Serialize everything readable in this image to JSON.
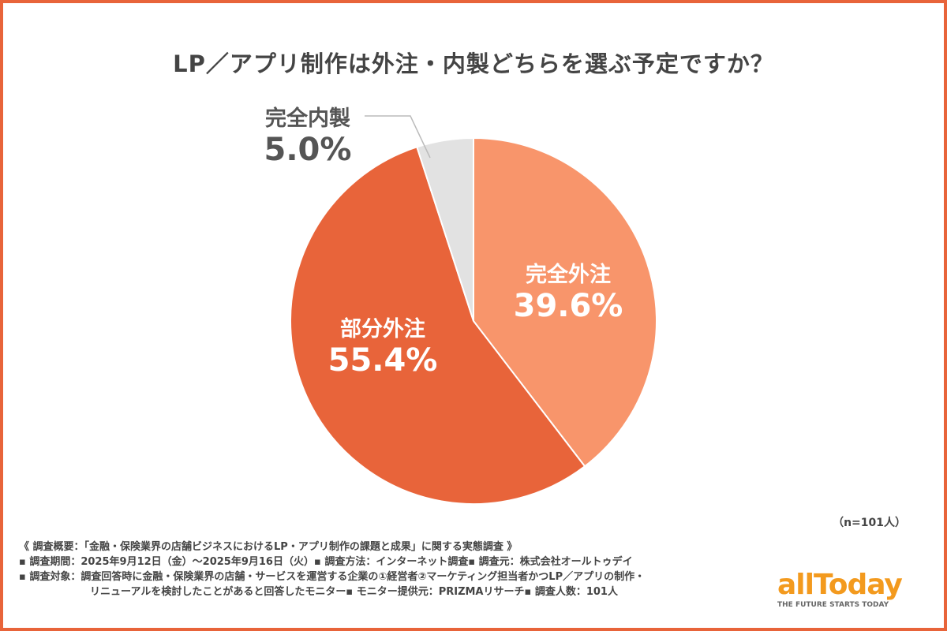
{
  "title": "LP／アプリ制作は外注・内製どちらを選ぶ予定ですか？",
  "chart_data": {
    "type": "pie",
    "title": "LP／アプリ制作は外注・内製どちらを選ぶ予定ですか？",
    "categories": [
      "完全外注",
      "部分外注",
      "完全内製"
    ],
    "values": [
      39.6,
      55.4,
      5.0
    ],
    "value_labels": [
      "39.6%",
      "55.4%",
      "5.0%"
    ],
    "colors": [
      "#F8956B",
      "#E8643A",
      "#E2E2E2"
    ],
    "start": "12 o'clock, clockwise"
  },
  "sample_note": "（n=101人）",
  "notes": {
    "summary": "《 調査概要：「金融・保険業界の店舗ビジネスにおけるLP・アプリ制作の課題と成果」に関する実態調査 》",
    "period": "▪ 調査期間：2025年9月12日（金）〜2025年9月16日（火）",
    "method": "▪ 調査方法：インターネット調査",
    "source": "▪ 調査元：株式会社オールトゥデイ",
    "target_1": "▪ 調査対象：調査回答時に金融・保険業界の店舗・サービスを運営する企業の①経営者②マーケティング担当者かつLP／アプリの制作・",
    "target_2": "リニューアルを検討したことがあると回答したモニター",
    "provider": "▪ モニター提供元：PRIZMAリサーチ",
    "count": "▪ 調査人数：101人"
  },
  "logo": {
    "word": "allToday",
    "tagline": "THE FUTURE STARTS TODAY"
  }
}
